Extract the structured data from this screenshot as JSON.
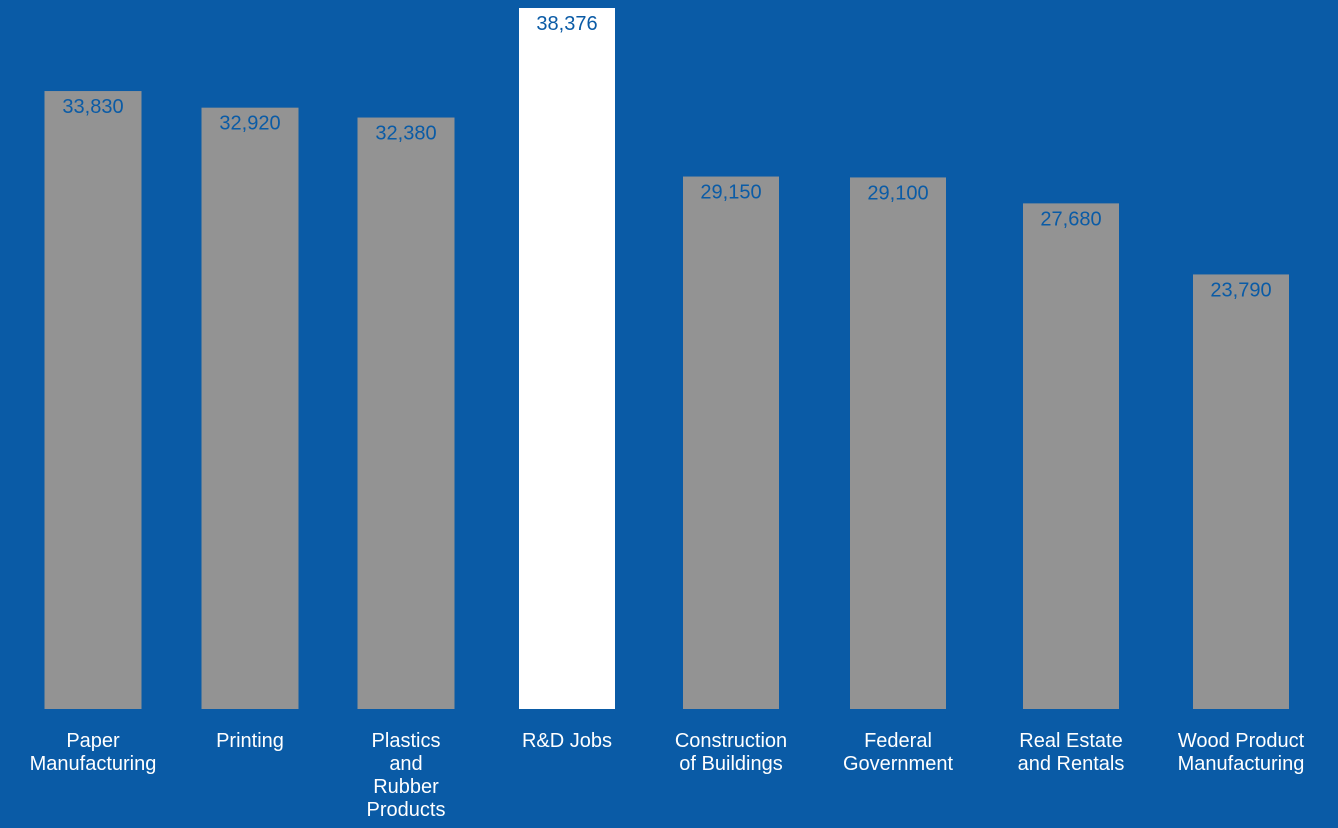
{
  "chart_data": {
    "type": "bar",
    "categories": [
      [
        "Paper",
        "Manufacturing"
      ],
      [
        "Printing"
      ],
      [
        "Plastics",
        "and",
        "Rubber",
        "Products"
      ],
      [
        "R&D Jobs"
      ],
      [
        "Construction",
        "of Buildings"
      ],
      [
        "Federal",
        "Government"
      ],
      [
        "Real Estate",
        "and Rentals"
      ],
      [
        "Wood Product",
        "Manufacturing"
      ]
    ],
    "values": [
      33830,
      32920,
      32380,
      38376,
      29150,
      29100,
      27680,
      23790
    ],
    "value_labels": [
      "33,830",
      "32,920",
      "32,380",
      "38,376",
      "29,150",
      "29,100",
      "27,680",
      "23,790"
    ],
    "highlight_index": 3,
    "ylim": [
      0,
      38376
    ],
    "grid": false,
    "colors": {
      "background": "#0a5ba6",
      "bar": "#939393",
      "highlight_bar": "#ffffff",
      "value_text": "#0a5ba6",
      "category_text": "#ffffff"
    }
  }
}
